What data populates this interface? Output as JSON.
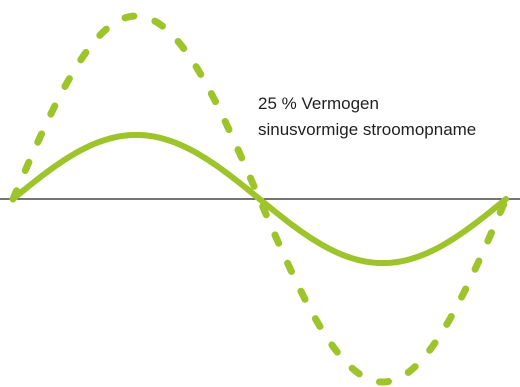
{
  "annotation": {
    "line1": "25 % Vermogen",
    "line2": "sinusvormige stroomopname"
  },
  "colors": {
    "wave": "#9dc42a",
    "axis": "#222222",
    "text": "#222222"
  },
  "waves": [
    {
      "name": "full-power-dashed-wave",
      "amplitude": 1.0,
      "style": "dashed"
    },
    {
      "name": "quarter-power-solid-wave",
      "amplitude": 0.35,
      "style": "solid"
    }
  ]
}
